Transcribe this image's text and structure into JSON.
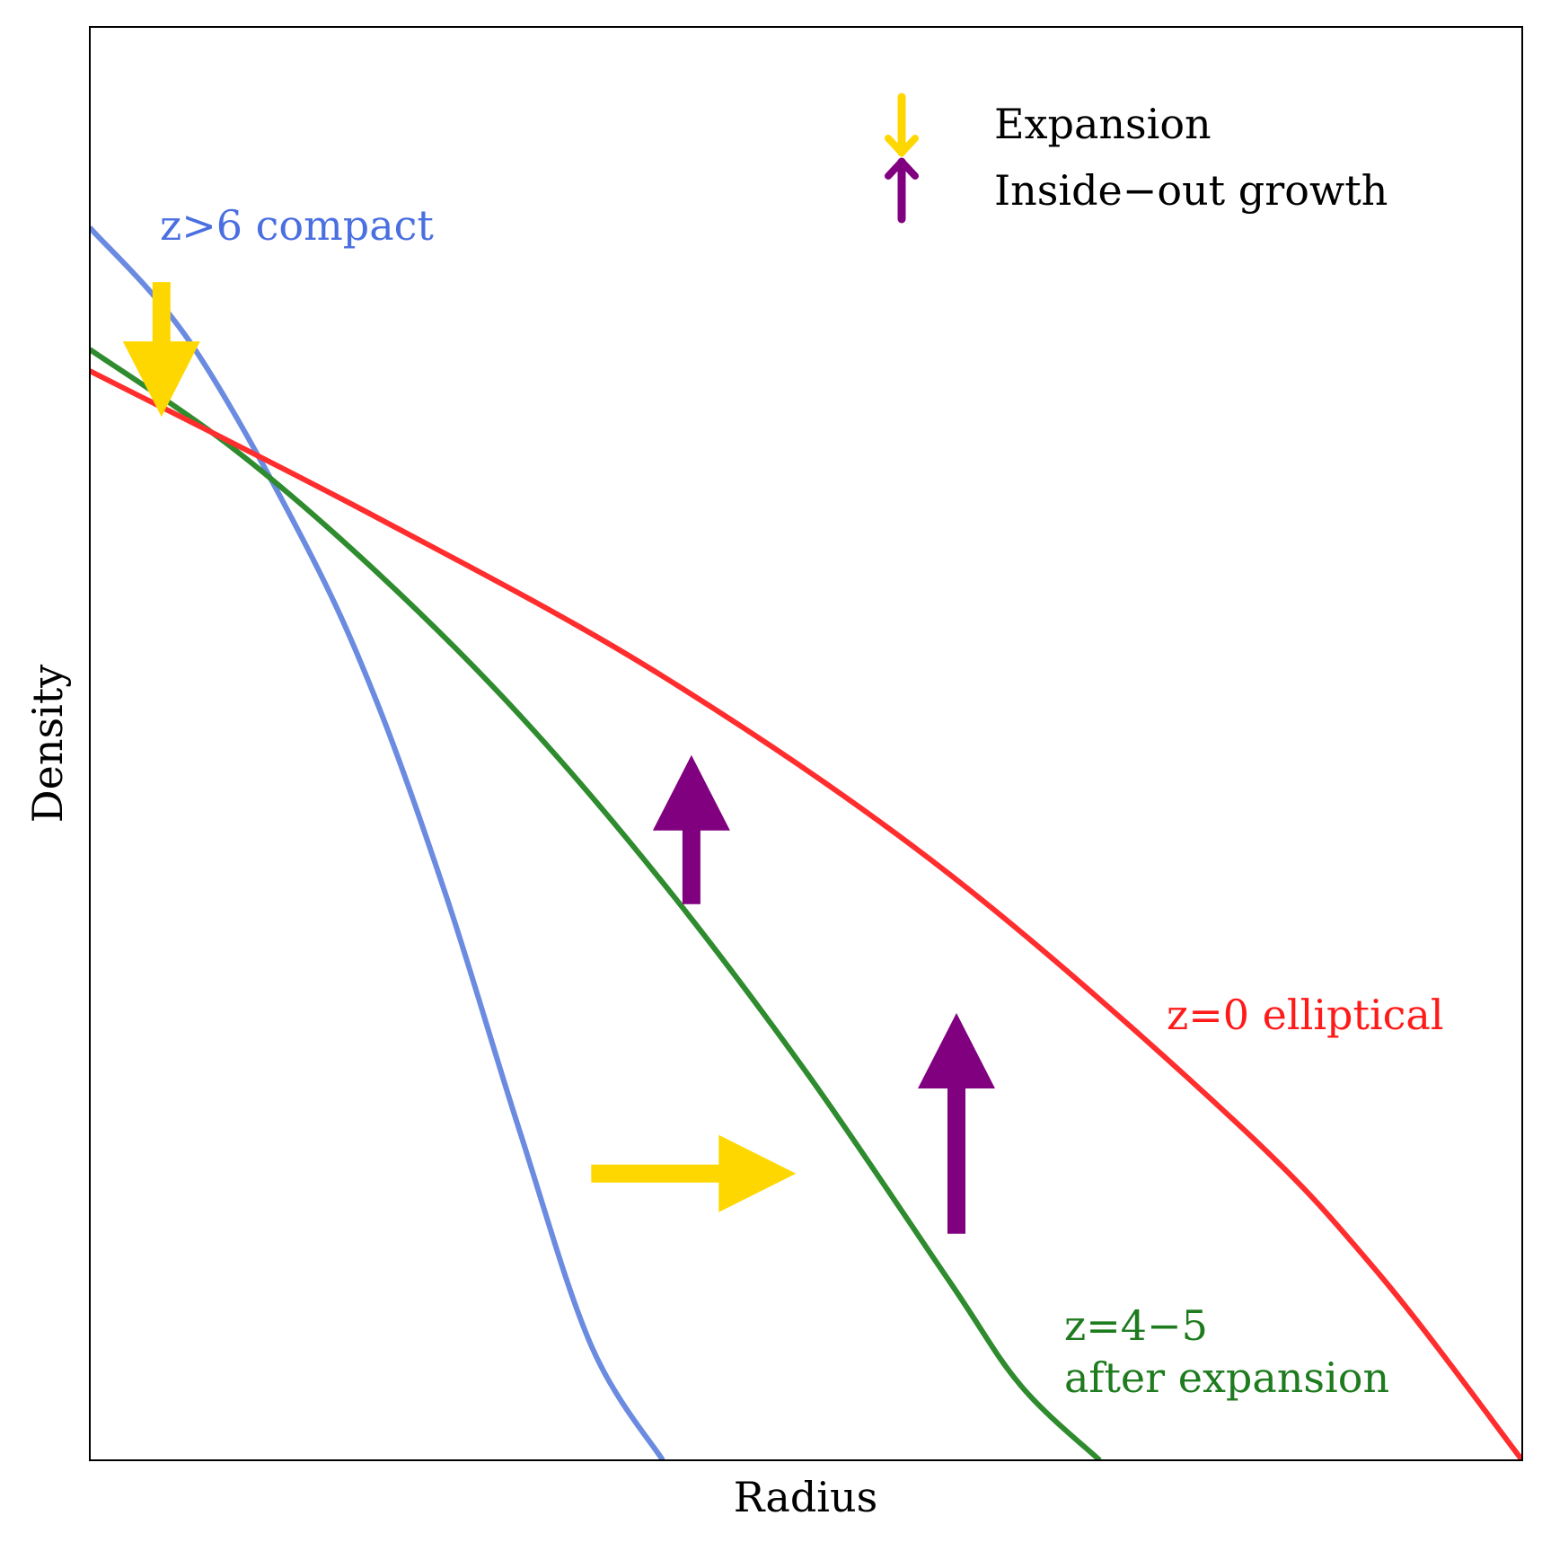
{
  "chart_data": {
    "type": "line",
    "title": "",
    "xlabel": "Radius",
    "ylabel": "Density",
    "xlim": [
      0,
      1
    ],
    "ylim": [
      0,
      1
    ],
    "grid": false,
    "ticks": "none",
    "legend": {
      "placement": "top-right",
      "entries": [
        {
          "label": "Expansion",
          "marker": "down-arrow",
          "color": "#FFD700"
        },
        {
          "label": "Inside−out growth",
          "marker": "up-arrow",
          "color": "#800080"
        }
      ]
    },
    "series": [
      {
        "color": "#6A8BE0",
        "label": "z>6 compact",
        "label_color": "#4A6FE0",
        "x": [
          0.0,
          0.07,
          0.15,
          0.2,
          0.25,
          0.3,
          0.35,
          0.4
        ],
        "y": [
          0.86,
          0.78,
          0.64,
          0.53,
          0.39,
          0.23,
          0.08,
          0.0
        ]
      },
      {
        "color": "#2E8B2E",
        "label": "z=4−5\nafter expansion",
        "label_color": "#1E7B1E",
        "x": [
          0.0,
          0.1,
          0.2,
          0.3,
          0.4,
          0.5,
          0.6,
          0.65,
          0.705
        ],
        "y": [
          0.775,
          0.706,
          0.62,
          0.52,
          0.403,
          0.271,
          0.125,
          0.052,
          0.0
        ]
      },
      {
        "color": "#FF2D2D",
        "label": "z=0 elliptical",
        "label_color": "#FF1A1A",
        "x": [
          0.0,
          0.2,
          0.4,
          0.6,
          0.8,
          0.9,
          1.0
        ],
        "y": [
          0.76,
          0.658,
          0.547,
          0.409,
          0.236,
          0.13,
          0.0
        ]
      }
    ],
    "annotations": [
      {
        "type": "arrow",
        "direction": "down",
        "color": "#FFD700",
        "x": 0.05,
        "y_from": 0.822,
        "y_to": 0.728
      },
      {
        "type": "arrow",
        "direction": "right",
        "color": "#FFD700",
        "y": 0.2,
        "x_from": 0.35,
        "x_to": 0.493
      },
      {
        "type": "arrow",
        "direction": "up",
        "color": "#800080",
        "x": 0.42,
        "y_from": 0.388,
        "y_to": 0.492
      },
      {
        "type": "arrow",
        "direction": "up",
        "color": "#800080",
        "x": 0.605,
        "y_from": 0.158,
        "y_to": 0.312
      }
    ]
  }
}
